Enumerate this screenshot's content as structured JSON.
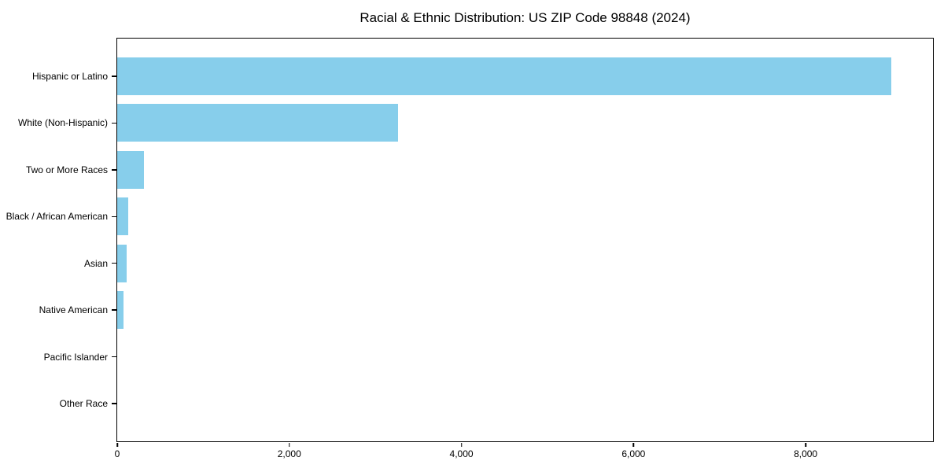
{
  "chart_data": {
    "type": "bar",
    "orientation": "horizontal",
    "title": "Racial & Ethnic Distribution: US ZIP Code 98848 (2024)",
    "categories": [
      "Hispanic or Latino",
      "White (Non-Hispanic)",
      "Two or More Races",
      "Black / African American",
      "Asian",
      "Native American",
      "Pacific Islander",
      "Other Race"
    ],
    "values": [
      9000,
      3260,
      310,
      125,
      110,
      75,
      0,
      0
    ],
    "xlabel": "",
    "ylabel": "",
    "xlim": [
      0,
      9480
    ],
    "xticks": [
      0,
      2000,
      4000,
      6000,
      8000
    ],
    "xtick_labels": [
      "0",
      "2,000",
      "4,000",
      "6,000",
      "8,000"
    ],
    "bar_color": "#87CEEB",
    "axis_color": "#000000",
    "grid": false,
    "legend": null
  }
}
